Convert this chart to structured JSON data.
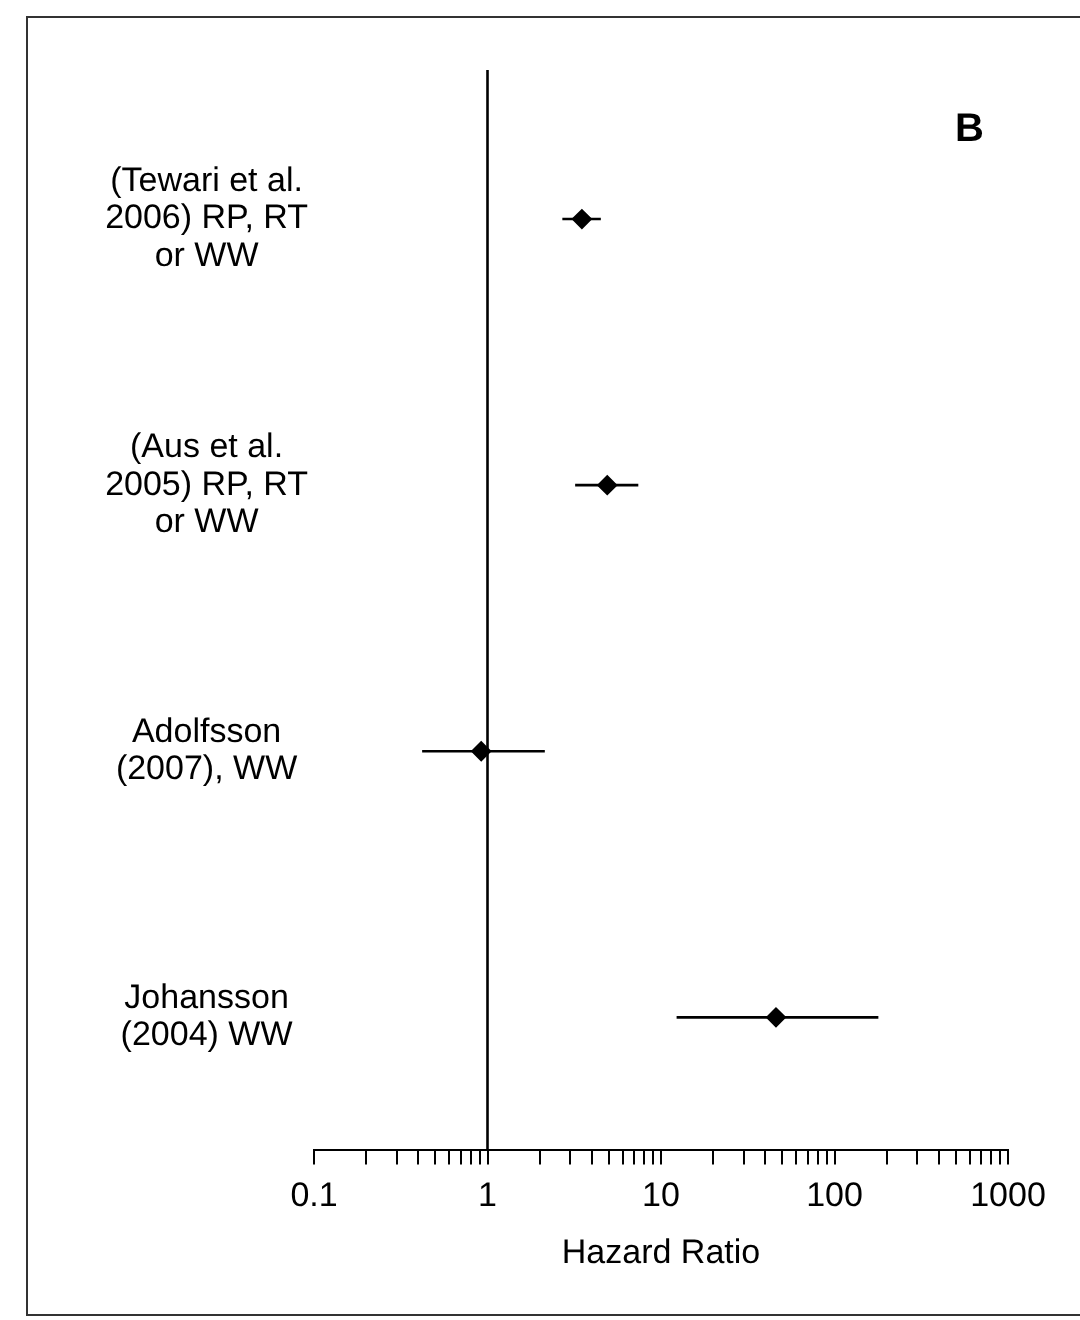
{
  "chart_data": {
    "type": "scatter",
    "orientation": "horizontal",
    "log": "x",
    "categories": [
      "(Tewari et al. 2006) RP, RT or WW",
      "(Aus et al. 2005) RP, RT or WW",
      "Adolfsson (2007), WW",
      "Johansson (2004) WW"
    ],
    "values": [
      3.5,
      4.9,
      0.92,
      46
    ],
    "errors": [
      [
        2.7,
        4.5
      ],
      [
        3.2,
        7.4
      ],
      [
        0.42,
        2.14
      ],
      [
        12.3,
        179
      ]
    ],
    "color": "#000000",
    "marker": "diamond",
    "xlim": [
      0.1,
      1000
    ],
    "xticks": [
      0.1,
      {
        "value": 0.2,
        "label": null
      },
      {
        "value": 0.3,
        "label": null
      },
      {
        "value": 0.4,
        "label": null
      },
      {
        "value": 0.5,
        "label": null
      },
      {
        "value": 0.6,
        "label": null
      },
      {
        "value": 0.7,
        "label": null
      },
      {
        "value": 0.8,
        "label": null
      },
      {
        "value": 0.9,
        "label": null
      },
      1,
      {
        "value": 2,
        "label": null
      },
      {
        "value": 3,
        "label": null
      },
      {
        "value": 4,
        "label": null
      },
      {
        "value": 5,
        "label": null
      },
      {
        "value": 6,
        "label": null
      },
      {
        "value": 7,
        "label": null
      },
      {
        "value": 8,
        "label": null
      },
      {
        "value": 9,
        "label": null
      },
      10,
      {
        "value": 20,
        "label": null
      },
      {
        "value": 30,
        "label": null
      },
      {
        "value": 40,
        "label": null
      },
      {
        "value": 50,
        "label": null
      },
      {
        "value": 60,
        "label": null
      },
      {
        "value": 70,
        "label": null
      },
      {
        "value": 80,
        "label": null
      },
      {
        "value": 90,
        "label": null
      },
      100,
      {
        "value": 200,
        "label": null
      },
      {
        "value": 300,
        "label": null
      },
      {
        "value": 400,
        "label": null
      },
      {
        "value": 500,
        "label": null
      },
      {
        "value": 600,
        "label": null
      },
      {
        "value": 700,
        "label": null
      },
      {
        "value": 800,
        "label": null
      },
      {
        "value": 900,
        "label": null
      },
      1000
    ],
    "xlabel": "Hazard Ratio",
    "ref_lines": [
      {
        "axis": "x",
        "value": 1,
        "color": "#000000"
      }
    ],
    "annotations": [
      "B"
    ],
    "grid": false,
    "legend": false
  }
}
